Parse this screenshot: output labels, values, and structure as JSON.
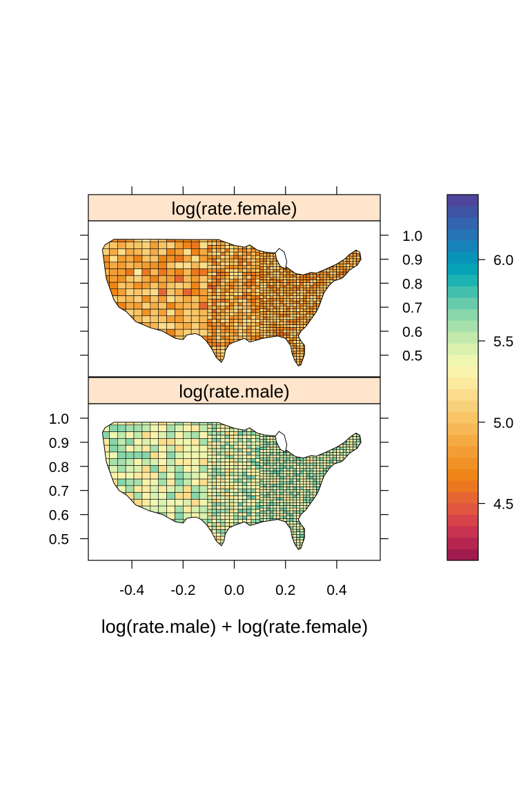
{
  "chart_data": {
    "type": "heatmap",
    "xlabel": "log(rate.male) + log(rate.female)",
    "x_range": [
      -0.57,
      0.57
    ],
    "y_range": [
      0.41,
      1.06
    ],
    "x_ticks": [
      "-0.4",
      "-0.2",
      "0.0",
      "0.2",
      "0.4"
    ],
    "x_tick_values": [
      -0.4,
      -0.2,
      0.0,
      0.2,
      0.4
    ],
    "y_ticks": [
      "0.5",
      "0.6",
      "0.7",
      "0.8",
      "0.9",
      "1.0"
    ],
    "y_tick_values": [
      0.5,
      0.6,
      0.7,
      0.8,
      0.9,
      1.0
    ],
    "panels": [
      {
        "strip_label": "log(rate.female)",
        "typical_value": 4.9,
        "value_range": [
          4.6,
          5.3
        ]
      },
      {
        "strip_label": "log(rate.male)",
        "typical_value": 5.4,
        "value_range": [
          5.1,
          5.7
        ]
      }
    ],
    "colorkey": {
      "range": [
        4.15,
        6.4
      ],
      "ticks": [
        "4.5",
        "5.0",
        "5.5",
        "6.0"
      ],
      "tick_values": [
        4.5,
        5.0,
        5.5,
        6.0
      ],
      "colors": [
        "#A01C4E",
        "#B52550",
        "#C73350",
        "#D6434A",
        "#DF5540",
        "#E56632",
        "#EB7820",
        "#EF8518",
        "#F19226",
        "#F39E34",
        "#F5AB44",
        "#F7B856",
        "#F8C466",
        "#F9D07A",
        "#FBDD8C",
        "#FCEAA0",
        "#FAF3AD",
        "#EEF6B0",
        "#DAF1B0",
        "#C2EAAD",
        "#A6E0AB",
        "#88D6AA",
        "#67CBAB",
        "#43BFAE",
        "#1DB2B2",
        "#06A3B7",
        "#0A93B9",
        "#1883B8",
        "#2674B4",
        "#3464AD",
        "#4054A4",
        "#4F469C"
      ]
    }
  }
}
